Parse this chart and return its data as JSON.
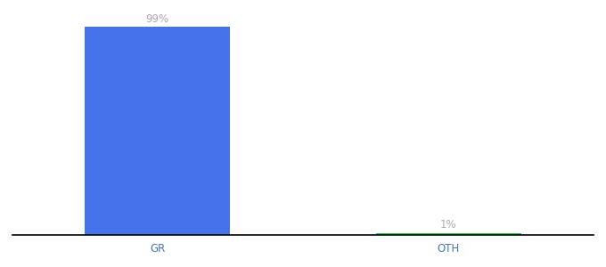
{
  "categories": [
    "GR",
    "OTH"
  ],
  "values": [
    99,
    1
  ],
  "bar_colors": [
    "#4472e8",
    "#22cc44"
  ],
  "value_labels": [
    "99%",
    "1%"
  ],
  "background_color": "#ffffff",
  "ylim": [
    0,
    108
  ],
  "bar_width": 0.5,
  "label_fontsize": 8.5,
  "tick_fontsize": 8.5,
  "tick_color": "#4472c4",
  "label_color": "#aaaaaa",
  "xlim": [
    -0.5,
    1.5
  ]
}
